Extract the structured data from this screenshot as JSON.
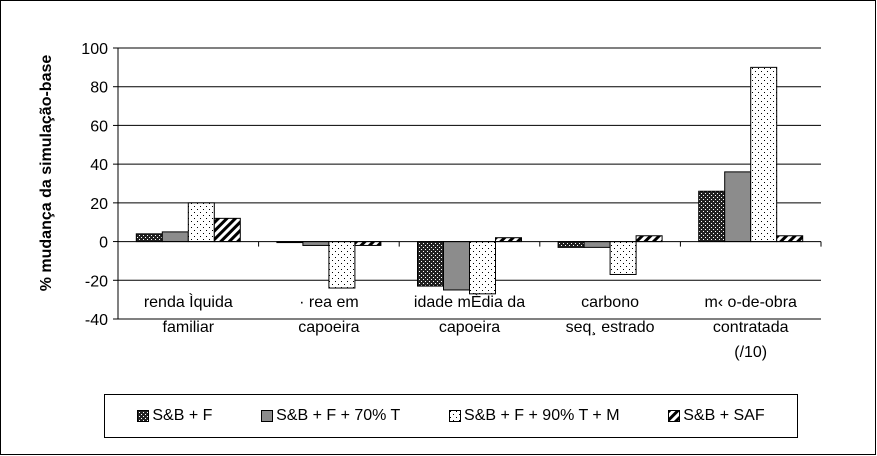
{
  "chart_data": {
    "type": "bar",
    "ylabel": "% mudança da simulação-base",
    "xlabel": "",
    "ylim": [
      -40,
      100
    ],
    "yticks": [
      -40,
      -20,
      0,
      20,
      40,
      60,
      80,
      100
    ],
    "grid": true,
    "legend_position": "bottom",
    "categories": [
      [
        "renda Ìquida",
        "familiar"
      ],
      [
        "· rea em",
        "capoeira"
      ],
      [
        "idade mÈdia da",
        "capoeira"
      ],
      [
        "carbono",
        "seq¸ estrado"
      ],
      [
        "m‹ o-de-obra",
        "contratada",
        "(/10)"
      ]
    ],
    "series": [
      {
        "name": "S&B + F",
        "pattern": "dots-dark",
        "values": [
          4,
          0,
          -23,
          -3,
          26
        ]
      },
      {
        "name": "S&B + F + 70% T",
        "pattern": "gray",
        "values": [
          5,
          -2,
          -25,
          -3,
          36
        ]
      },
      {
        "name": "S&B + F + 90% T + M",
        "pattern": "dots-light",
        "values": [
          20,
          -24,
          -27,
          -17,
          90
        ]
      },
      {
        "name": "S&B + SAF",
        "pattern": "diagonal",
        "values": [
          12,
          -2,
          2,
          3,
          3
        ]
      }
    ]
  }
}
